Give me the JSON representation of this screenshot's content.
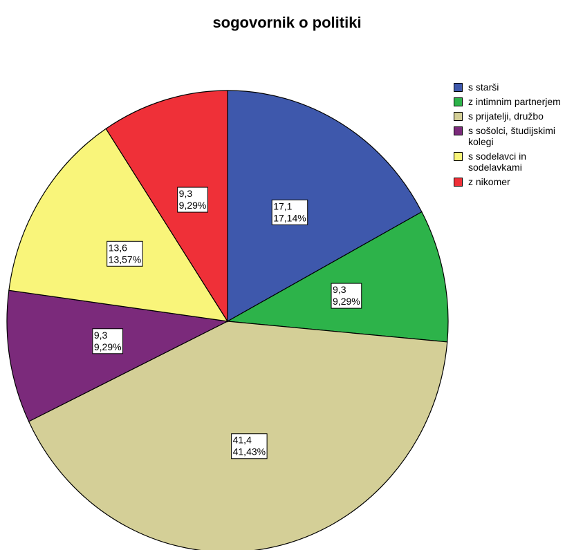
{
  "chart_data": {
    "type": "pie",
    "title": "sogovornik o politiki",
    "categories": [
      "s starši",
      "z intimnim partnerjem",
      "s prijatelji, družbo",
      "s sošolci, študijskimi kolegi",
      "s sodelavci in sodelavkami",
      "z nikomer"
    ],
    "values": [
      17.14,
      9.29,
      41.43,
      9.29,
      13.57,
      9.29
    ],
    "value_labels": [
      "17,1",
      "9,3",
      "41,4",
      "9,3",
      "13,6",
      "9,3"
    ],
    "percent_labels": [
      "17,14%",
      "9,29%",
      "41,43%",
      "9,29%",
      "13,57%",
      "9,29%"
    ],
    "colors": [
      "#3e58ac",
      "#2db34a",
      "#d4cf97",
      "#7b2a7b",
      "#f9f57a",
      "#ef3038"
    ],
    "legend": "right"
  }
}
